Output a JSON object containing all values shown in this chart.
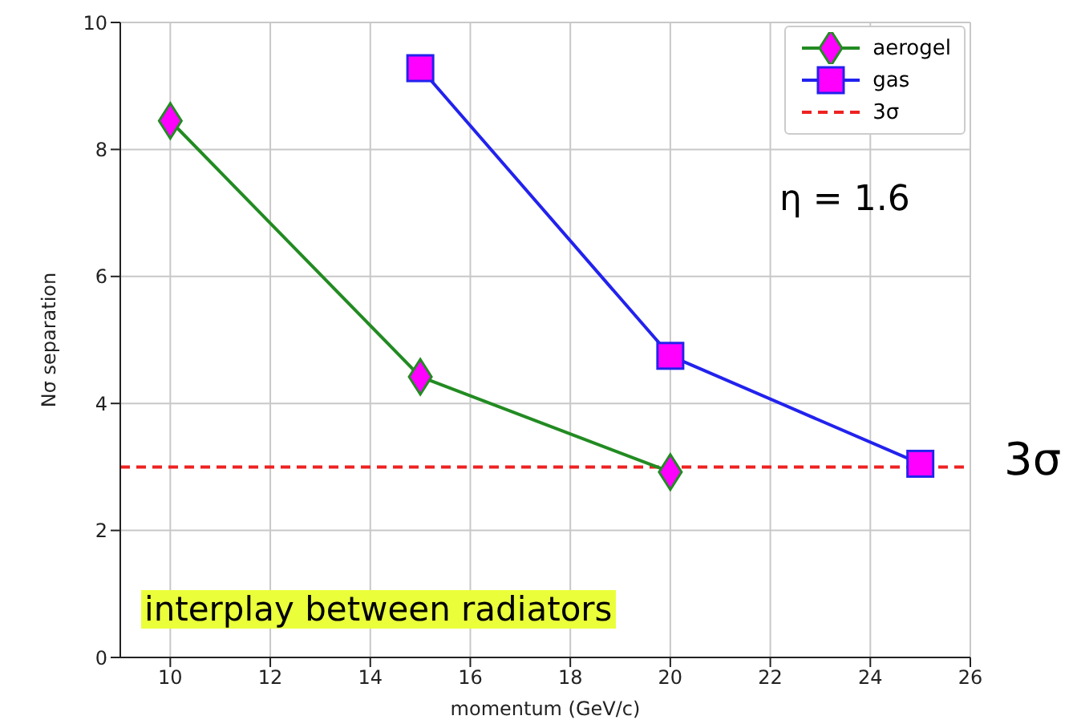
{
  "chart_data": {
    "type": "line",
    "xlabel": "momentum (GeV/c)",
    "ylabel": "Nσ separation",
    "xlim": [
      9,
      26
    ],
    "xticks": [
      10,
      12,
      14,
      16,
      18,
      20,
      22,
      24,
      26
    ],
    "ylim": [
      0,
      10
    ],
    "yticks": [
      0,
      2,
      4,
      6,
      8,
      10
    ],
    "grid": true,
    "legend": "top right",
    "line_style": "solid",
    "series": [
      {
        "name": "aerogel",
        "color": "#228b22",
        "marker": "diamond",
        "x": [
          10,
          15,
          20
        ],
        "values": [
          8.45,
          4.42,
          2.92
        ]
      },
      {
        "name": "gas",
        "color": "#2222ee",
        "marker": "square",
        "x": [
          15,
          20,
          25
        ],
        "values": [
          9.28,
          4.75,
          3.05
        ]
      }
    ],
    "ref_lines": [
      {
        "axis": "y",
        "value": 3,
        "label": "3σ",
        "color": "#ee2222",
        "line_style": "dashed"
      }
    ],
    "annotations": [
      "η = 1.6",
      "interplay between radiators",
      "3σ"
    ]
  }
}
